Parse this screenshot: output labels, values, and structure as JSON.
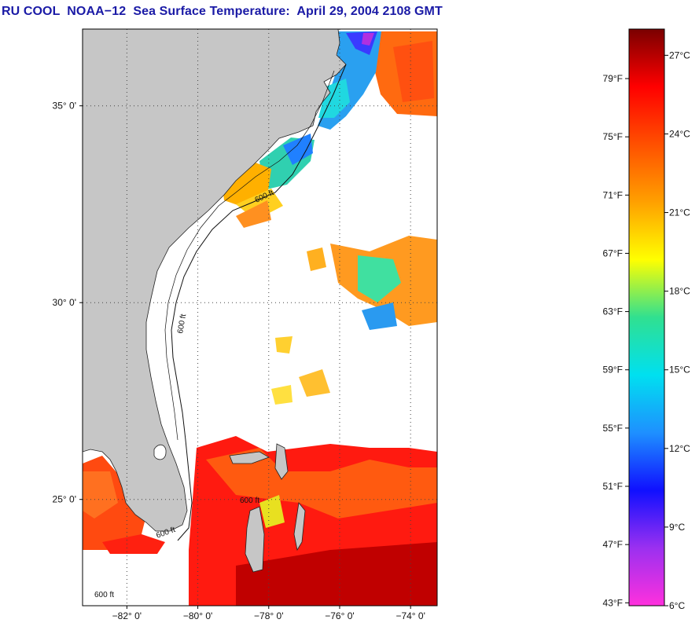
{
  "title": "RU COOL  NOAA−12  Sea Surface Temperature:  April 29, 2004 2108 GMT",
  "map": {
    "lon_range": [
      -83.25,
      -73.25
    ],
    "lat_range": [
      22.3,
      36.95
    ],
    "lat_ticks": [
      {
        "value": 35,
        "label": "35° 0'"
      },
      {
        "value": 30,
        "label": "30° 0'"
      },
      {
        "value": 25,
        "label": "25° 0'"
      }
    ],
    "lon_ticks": [
      {
        "value": -82,
        "label": "−82° 0'"
      },
      {
        "value": -80,
        "label": "−80° 0'"
      },
      {
        "value": -78,
        "label": "−78° 0'"
      },
      {
        "value": -76,
        "label": "−76° 0'"
      },
      {
        "value": -74,
        "label": "−74° 0'"
      }
    ],
    "contour_labels": [
      "600 ft",
      "600 ft",
      "600 ft",
      "600 ft",
      "600 ft"
    ],
    "colors": {
      "land": "#c6c6c6",
      "ocean_no_data": "#ffffff",
      "grid": "#444444",
      "frame": "#000000"
    }
  },
  "colorbar": {
    "min_c": 6,
    "max_c": 28,
    "fahrenheit_labels": [
      "43°F",
      "47°F",
      "51°F",
      "55°F",
      "59°F",
      "63°F",
      "67°F",
      "71°F",
      "75°F",
      "79°F"
    ],
    "fahrenheit_values": [
      43,
      47,
      51,
      55,
      59,
      63,
      67,
      71,
      75,
      79
    ],
    "celsius_labels": [
      "6°C",
      "9°C",
      "12°C",
      "15°C",
      "18°C",
      "21°C",
      "24°C",
      "27°C"
    ],
    "celsius_values": [
      6,
      9,
      12,
      15,
      18,
      21,
      24,
      27
    ],
    "gradient_stops": [
      "#ff30dd",
      "#9b30f0",
      "#1010ff",
      "#1e90ff",
      "#00e0f0",
      "#30e090",
      "#ffff00",
      "#ffa000",
      "#ff5000",
      "#ff0000",
      "#7a0000"
    ]
  }
}
